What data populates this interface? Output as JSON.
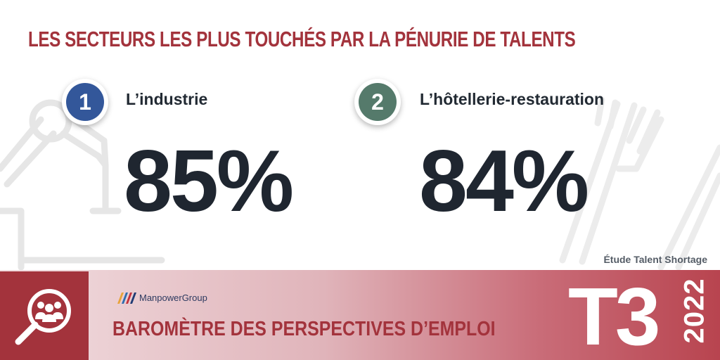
{
  "header": {
    "title": "LES SECTEURS LES PLUS TOUCHÉS PAR LA PÉNURIE DE TALENTS"
  },
  "sectors": [
    {
      "rank": "1",
      "label": "L’industrie",
      "value": "85%",
      "color": "#33579a"
    },
    {
      "rank": "2",
      "label": "L’hôtellerie-restauration",
      "value": "84%",
      "color": "#557a6b"
    }
  ],
  "source": "Étude Talent Shortage",
  "banner": {
    "brand": "ManpowerGroup",
    "title": "BAROMÈTRE DES PERSPECTIVES D’EMPLOI",
    "quarter": "T3",
    "year": "2022",
    "icon": "magnifier-people-icon",
    "accent_color": "#a3333c"
  },
  "background_icons": [
    "robot-arm-icon",
    "fork-icon",
    "knife-icon"
  ]
}
